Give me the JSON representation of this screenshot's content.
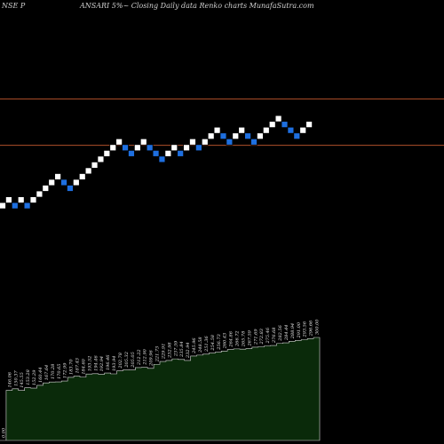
{
  "header": {
    "symbol": "NSE P",
    "title": "ANSARI 5%~ Closing Daily data Renko charts MunafaSutra.com"
  },
  "colors": {
    "background": "#000000",
    "up_brick": "#ffffff",
    "down_brick": "#1e6fe0",
    "brick_border": "#000000",
    "reference_line": "#b0502a",
    "volume_fill": "#0a2a0a",
    "volume_stroke": "#d8d8d8"
  },
  "chart_data": {
    "type": "renko",
    "brick_size_label": "5%",
    "reference_levels": [
      255,
      215
    ],
    "price_range": [
      80,
      325
    ],
    "bricks": [
      {
        "dir": "up",
        "price": 163
      },
      {
        "dir": "up",
        "price": 168
      },
      {
        "dir": "down",
        "price": 163
      },
      {
        "dir": "up",
        "price": 168
      },
      {
        "dir": "down",
        "price": 163
      },
      {
        "dir": "up",
        "price": 168
      },
      {
        "dir": "up",
        "price": 173
      },
      {
        "dir": "up",
        "price": 178
      },
      {
        "dir": "up",
        "price": 183
      },
      {
        "dir": "up",
        "price": 188
      },
      {
        "dir": "down",
        "price": 183
      },
      {
        "dir": "down",
        "price": 178
      },
      {
        "dir": "up",
        "price": 183
      },
      {
        "dir": "up",
        "price": 188
      },
      {
        "dir": "up",
        "price": 193
      },
      {
        "dir": "up",
        "price": 198
      },
      {
        "dir": "up",
        "price": 203
      },
      {
        "dir": "up",
        "price": 208
      },
      {
        "dir": "up",
        "price": 213
      },
      {
        "dir": "up",
        "price": 218
      },
      {
        "dir": "down",
        "price": 213
      },
      {
        "dir": "down",
        "price": 208
      },
      {
        "dir": "up",
        "price": 213
      },
      {
        "dir": "up",
        "price": 218
      },
      {
        "dir": "down",
        "price": 213
      },
      {
        "dir": "down",
        "price": 208
      },
      {
        "dir": "down",
        "price": 203
      },
      {
        "dir": "up",
        "price": 208
      },
      {
        "dir": "up",
        "price": 213
      },
      {
        "dir": "down",
        "price": 208
      },
      {
        "dir": "up",
        "price": 213
      },
      {
        "dir": "up",
        "price": 218
      },
      {
        "dir": "down",
        "price": 213
      },
      {
        "dir": "up",
        "price": 218
      },
      {
        "dir": "up",
        "price": 223
      },
      {
        "dir": "up",
        "price": 228
      },
      {
        "dir": "down",
        "price": 223
      },
      {
        "dir": "down",
        "price": 218
      },
      {
        "dir": "up",
        "price": 223
      },
      {
        "dir": "up",
        "price": 228
      },
      {
        "dir": "down",
        "price": 223
      },
      {
        "dir": "down",
        "price": 218
      },
      {
        "dir": "up",
        "price": 223
      },
      {
        "dir": "up",
        "price": 228
      },
      {
        "dir": "up",
        "price": 233
      },
      {
        "dir": "up",
        "price": 238
      },
      {
        "dir": "down",
        "price": 233
      },
      {
        "dir": "down",
        "price": 228
      },
      {
        "dir": "down",
        "price": 223
      },
      {
        "dir": "up",
        "price": 228
      },
      {
        "dir": "up",
        "price": 233
      }
    ],
    "bars": [
      {
        "label": "0.00",
        "value": 0
      },
      {
        "label": "146.06",
        "value": 146.06
      },
      {
        "label": "150.37",
        "value": 150.37
      },
      {
        "label": "145.55",
        "value": 145.55
      },
      {
        "label": "153.28",
        "value": 153.28
      },
      {
        "label": "152.29",
        "value": 152.29
      },
      {
        "label": "160.44",
        "value": 160.44
      },
      {
        "label": "167.64",
        "value": 167.64
      },
      {
        "label": "170.28",
        "value": 170.28
      },
      {
        "label": "170.65",
        "value": 170.65
      },
      {
        "label": "172.99",
        "value": 172.99
      },
      {
        "label": "183.70",
        "value": 183.7
      },
      {
        "label": "187.43",
        "value": 187.43
      },
      {
        "label": "184.60",
        "value": 184.6
      },
      {
        "label": "193.52",
        "value": 193.52
      },
      {
        "label": "194.46",
        "value": 194.46
      },
      {
        "label": "192.94",
        "value": 192.94
      },
      {
        "label": "196.46",
        "value": 196.46
      },
      {
        "label": "193.94",
        "value": 193.94
      },
      {
        "label": "202.78",
        "value": 202.78
      },
      {
        "label": "205.32",
        "value": 205.32
      },
      {
        "label": "205.05",
        "value": 205.05
      },
      {
        "label": "212.22",
        "value": 212.22
      },
      {
        "label": "212.90",
        "value": 212.9
      },
      {
        "label": "209.96",
        "value": 209.96
      },
      {
        "label": "221.73",
        "value": 221.73
      },
      {
        "label": "229.91",
        "value": 229.91
      },
      {
        "label": "232.98",
        "value": 232.98
      },
      {
        "label": "237.59",
        "value": 237.59
      },
      {
        "label": "235.84",
        "value": 235.84
      },
      {
        "label": "232.94",
        "value": 232.94
      },
      {
        "label": "245.96",
        "value": 245.96
      },
      {
        "label": "248.58",
        "value": 248.58
      },
      {
        "label": "251.36",
        "value": 251.36
      },
      {
        "label": "254.58",
        "value": 254.58
      },
      {
        "label": "256.73",
        "value": 256.73
      },
      {
        "label": "260.43",
        "value": 260.43
      },
      {
        "label": "264.86",
        "value": 264.86
      },
      {
        "label": "266.72",
        "value": 266.72
      },
      {
        "label": "265.78",
        "value": 265.78
      },
      {
        "label": "267.59",
        "value": 267.59
      },
      {
        "label": "271.69",
        "value": 271.69
      },
      {
        "label": "272.83",
        "value": 272.83
      },
      {
        "label": "275.46",
        "value": 275.46
      },
      {
        "label": "276.68",
        "value": 276.68
      },
      {
        "label": "282.56",
        "value": 282.56
      },
      {
        "label": "284.44",
        "value": 284.44
      },
      {
        "label": "288.94",
        "value": 288.94
      },
      {
        "label": "291.00",
        "value": 291.0
      },
      {
        "label": "293.56",
        "value": 293.56
      },
      {
        "label": "296.66",
        "value": 296.66
      },
      {
        "label": "300.00",
        "value": 300.0
      }
    ]
  }
}
